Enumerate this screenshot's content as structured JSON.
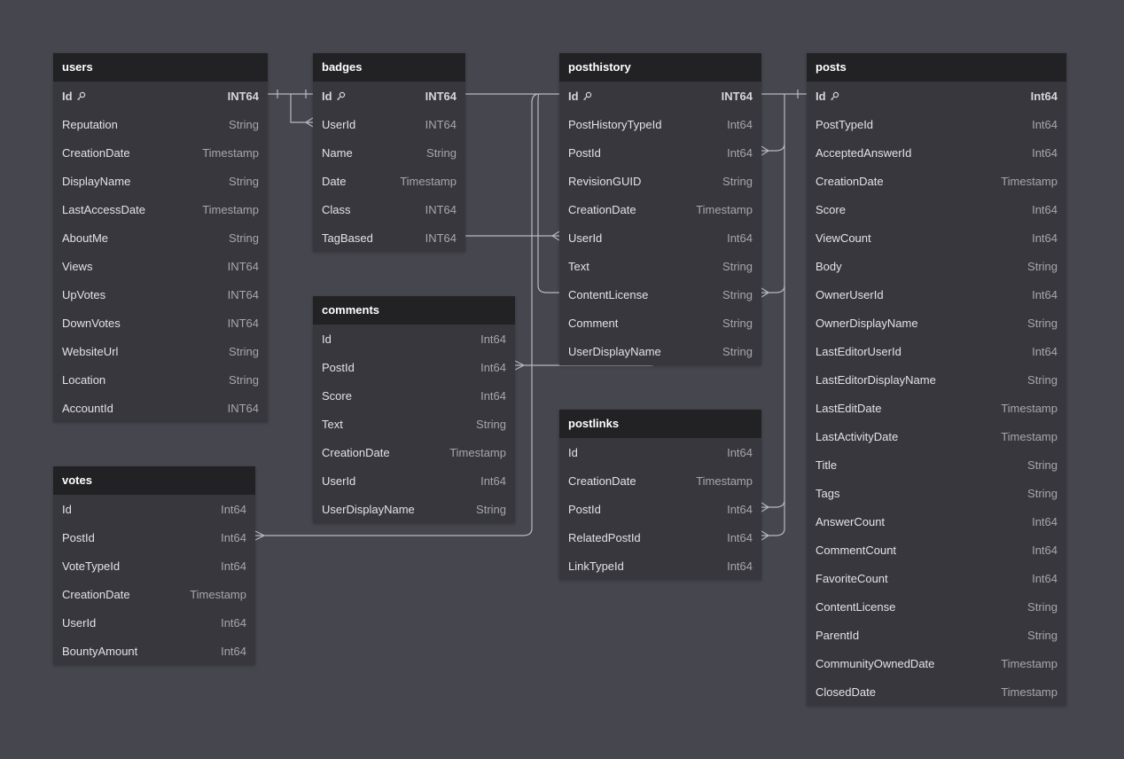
{
  "tables": [
    {
      "name": "users",
      "columns": [
        {
          "name": "Id",
          "type": "INT64"
        },
        {
          "name": "Reputation",
          "type": "String"
        },
        {
          "name": "CreationDate",
          "type": "Timestamp"
        },
        {
          "name": "DisplayName",
          "type": "String"
        },
        {
          "name": "LastAccessDate",
          "type": "Timestamp"
        },
        {
          "name": "AboutMe",
          "type": "String"
        },
        {
          "name": "Views",
          "type": "INT64"
        },
        {
          "name": "UpVotes",
          "type": "INT64"
        },
        {
          "name": "DownVotes",
          "type": "INT64"
        },
        {
          "name": "WebsiteUrl",
          "type": "String"
        },
        {
          "name": "Location",
          "type": "String"
        },
        {
          "name": "AccountId",
          "type": "INT64"
        }
      ]
    },
    {
      "name": "badges",
      "columns": [
        {
          "name": "Id",
          "type": "INT64"
        },
        {
          "name": "UserId",
          "type": "INT64"
        },
        {
          "name": "Name",
          "type": "String"
        },
        {
          "name": "Date",
          "type": "Timestamp"
        },
        {
          "name": "Class",
          "type": "INT64"
        },
        {
          "name": "TagBased",
          "type": "INT64"
        }
      ]
    },
    {
      "name": "posthistory",
      "columns": [
        {
          "name": "Id",
          "type": "INT64"
        },
        {
          "name": "PostHistoryTypeId",
          "type": "Int64"
        },
        {
          "name": "PostId",
          "type": "Int64"
        },
        {
          "name": "RevisionGUID",
          "type": "String"
        },
        {
          "name": "CreationDate",
          "type": "Timestamp"
        },
        {
          "name": "UserId",
          "type": "Int64"
        },
        {
          "name": "Text",
          "type": "String"
        },
        {
          "name": "ContentLicense",
          "type": "String"
        },
        {
          "name": "Comment",
          "type": "String"
        },
        {
          "name": "UserDisplayName",
          "type": "String"
        }
      ]
    },
    {
      "name": "posts",
      "columns": [
        {
          "name": "Id",
          "type": "Int64"
        },
        {
          "name": "PostTypeId",
          "type": "Int64"
        },
        {
          "name": "AcceptedAnswerId",
          "type": "Int64"
        },
        {
          "name": "CreationDate",
          "type": "Timestamp"
        },
        {
          "name": "Score",
          "type": "Int64"
        },
        {
          "name": "ViewCount",
          "type": "Int64"
        },
        {
          "name": "Body",
          "type": "String"
        },
        {
          "name": "OwnerUserId",
          "type": "Int64"
        },
        {
          "name": "OwnerDisplayName",
          "type": "String"
        },
        {
          "name": "LastEditorUserId",
          "type": "Int64"
        },
        {
          "name": "LastEditorDisplayName",
          "type": "String"
        },
        {
          "name": "LastEditDate",
          "type": "Timestamp"
        },
        {
          "name": "LastActivityDate",
          "type": "Timestamp"
        },
        {
          "name": "Title",
          "type": "String"
        },
        {
          "name": "Tags",
          "type": "String"
        },
        {
          "name": "AnswerCount",
          "type": "Int64"
        },
        {
          "name": "CommentCount",
          "type": "Int64"
        },
        {
          "name": "FavoriteCount",
          "type": "Int64"
        },
        {
          "name": "ContentLicense",
          "type": "String"
        },
        {
          "name": "ParentId",
          "type": "String"
        },
        {
          "name": "CommunityOwnedDate",
          "type": "Timestamp"
        },
        {
          "name": "ClosedDate",
          "type": "Timestamp"
        }
      ]
    },
    {
      "name": "comments",
      "columns": [
        {
          "name": "Id",
          "type": "Int64"
        },
        {
          "name": "PostId",
          "type": "Int64"
        },
        {
          "name": "Score",
          "type": "Int64"
        },
        {
          "name": "Text",
          "type": "String"
        },
        {
          "name": "CreationDate",
          "type": "Timestamp"
        },
        {
          "name": "UserId",
          "type": "Int64"
        },
        {
          "name": "UserDisplayName",
          "type": "String"
        }
      ]
    },
    {
      "name": "votes",
      "columns": [
        {
          "name": "Id",
          "type": "Int64"
        },
        {
          "name": "PostId",
          "type": "Int64"
        },
        {
          "name": "VoteTypeId",
          "type": "Int64"
        },
        {
          "name": "CreationDate",
          "type": "Timestamp"
        },
        {
          "name": "UserId",
          "type": "Int64"
        },
        {
          "name": "BountyAmount",
          "type": "Int64"
        }
      ]
    },
    {
      "name": "postlinks",
      "columns": [
        {
          "name": "Id",
          "type": "Int64"
        },
        {
          "name": "CreationDate",
          "type": "Timestamp"
        },
        {
          "name": "PostId",
          "type": "Int64"
        },
        {
          "name": "RelatedPostId",
          "type": "Int64"
        },
        {
          "name": "LinkTypeId",
          "type": "Int64"
        }
      ]
    }
  ]
}
